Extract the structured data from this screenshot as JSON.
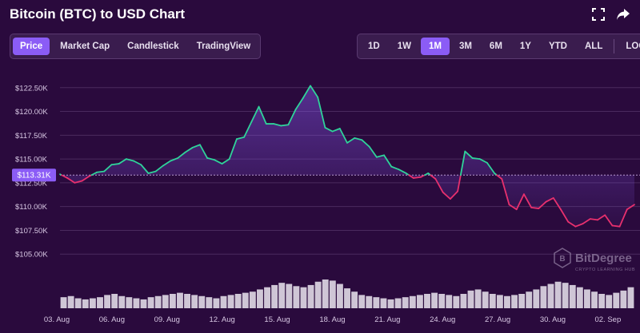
{
  "header": {
    "title": "Bitcoin (BTC) to USD Chart",
    "fullscreen_icon": "fullscreen-icon",
    "share_icon": "share-icon"
  },
  "view_tabs": [
    {
      "label": "Price",
      "active": true
    },
    {
      "label": "Market Cap",
      "active": false
    },
    {
      "label": "Candlestick",
      "active": false
    },
    {
      "label": "TradingView",
      "active": false
    }
  ],
  "range_tabs": [
    {
      "label": "1D",
      "active": false
    },
    {
      "label": "1W",
      "active": false
    },
    {
      "label": "1M",
      "active": true
    },
    {
      "label": "3M",
      "active": false
    },
    {
      "label": "6M",
      "active": false
    },
    {
      "label": "1Y",
      "active": false
    },
    {
      "label": "YTD",
      "active": false
    },
    {
      "label": "ALL",
      "active": false
    }
  ],
  "log_label": "LOG",
  "watermark": {
    "name": "BitDegree",
    "tagline": "CRYPTO LEARNING HUB"
  },
  "colors": {
    "up": "#2fd39a",
    "down": "#e8306e",
    "accent": "#8b5cf6",
    "background": "#2a0a3d"
  },
  "chart_data": {
    "type": "line",
    "title": "Bitcoin (BTC) to USD Chart",
    "x_ticks": [
      "03. Aug",
      "06. Aug",
      "09. Aug",
      "12. Aug",
      "15. Aug",
      "18. Aug",
      "21. Aug",
      "24. Aug",
      "27. Aug",
      "30. Aug",
      "02. Sep"
    ],
    "y_ticks": [
      "$105.00K",
      "$107.50K",
      "$110.00K",
      "$112.50K",
      "$115.00K",
      "$117.50K",
      "$120.00K",
      "$122.50K"
    ],
    "ylim": [
      102500,
      125000
    ],
    "reference_value": 113310,
    "reference_label": "$113.31K",
    "x_start": "2025-08-03",
    "values": [
      113400,
      113000,
      112500,
      112700,
      113200,
      113600,
      113700,
      114400,
      114500,
      115000,
      114800,
      114400,
      113500,
      113700,
      114300,
      114800,
      115100,
      115700,
      116200,
      116500,
      115100,
      114900,
      114500,
      115000,
      117100,
      117300,
      118900,
      120500,
      118700,
      118700,
      118500,
      118600,
      120200,
      121400,
      122700,
      121500,
      118300,
      117900,
      118200,
      116700,
      117200,
      117000,
      116300,
      115200,
      115400,
      114200,
      113900,
      113500,
      113000,
      113100,
      113500,
      112900,
      111500,
      110800,
      111600,
      115800,
      115100,
      115000,
      114600,
      113500,
      112900,
      110200,
      109700,
      111300,
      109900,
      109800,
      110500,
      110900,
      109700,
      108400,
      107900,
      108200,
      108700,
      108600,
      109100,
      108000,
      107900,
      109700,
      110200
    ],
    "volume": [
      10,
      11,
      9,
      8,
      9,
      10,
      12,
      13,
      11,
      10,
      9,
      8,
      10,
      11,
      12,
      13,
      14,
      13,
      12,
      11,
      10,
      9,
      11,
      12,
      13,
      14,
      15,
      17,
      19,
      21,
      23,
      22,
      20,
      19,
      21,
      24,
      26,
      25,
      22,
      18,
      15,
      12,
      11,
      10,
      9,
      8,
      9,
      10,
      11,
      12,
      13,
      14,
      13,
      12,
      11,
      13,
      16,
      17,
      15,
      13,
      12,
      11,
      12,
      13,
      15,
      17,
      20,
      22,
      24,
      23,
      21,
      19,
      17,
      15,
      13,
      12,
      14,
      16,
      19
    ]
  }
}
